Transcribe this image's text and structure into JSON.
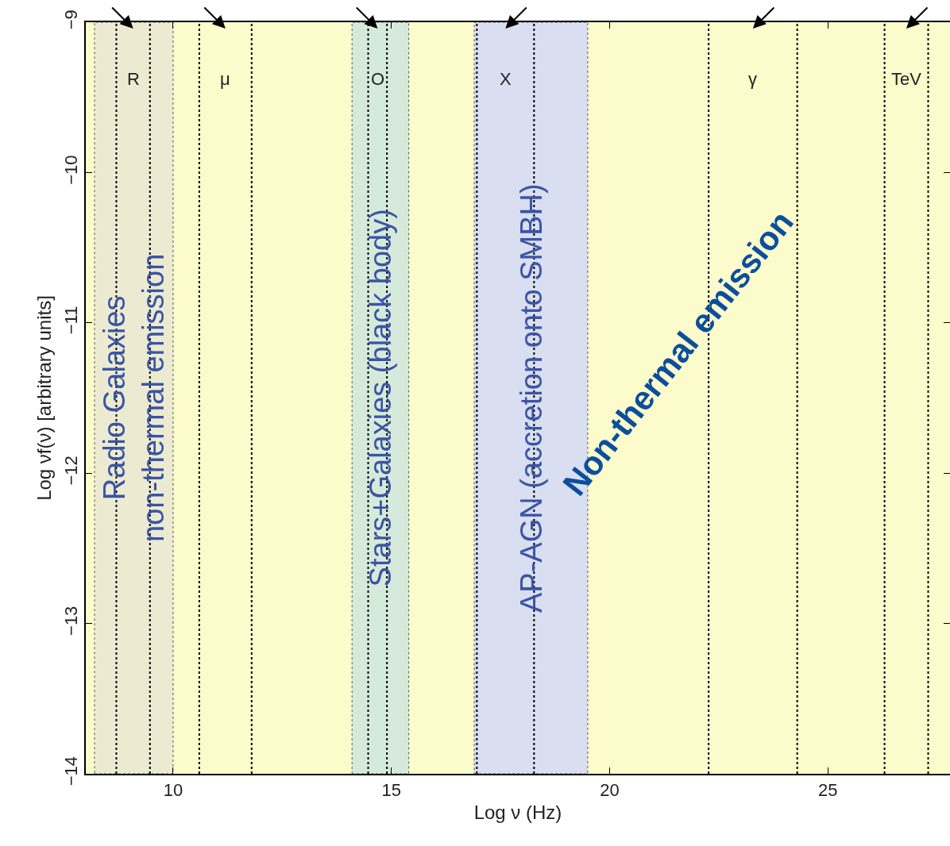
{
  "chart_data": {
    "type": "line",
    "xlabel": "Log ν (Hz)",
    "ylabel": "Log νf(ν) [arbitrary units]",
    "xlim": [
      8,
      27.8
    ],
    "ylim": [
      -14,
      -9
    ],
    "xticks": [
      10,
      15,
      20,
      25
    ],
    "yticks": [
      -14,
      -13,
      -12,
      -11,
      -10,
      -9
    ],
    "grid": false,
    "bands": [
      {
        "axis": "x",
        "from": 8.2,
        "to": 10.0,
        "label": "Radio Galaxies\nnon-thermal emission",
        "color": "#ecebd2"
      },
      {
        "axis": "x",
        "from": 14.1,
        "to": 15.4,
        "label": "Stars+Galaxies (black body)",
        "color": "#d6eadb"
      },
      {
        "axis": "x",
        "from": 16.9,
        "to": 19.5,
        "label": "AP-AGN (accretion onto SMBH)",
        "color": "#d9def0"
      }
    ],
    "ref_lines": [
      {
        "axis": "x",
        "value": 8.7,
        "line_style": "dotted"
      },
      {
        "axis": "x",
        "value": 9.47,
        "line_style": "dotted"
      },
      {
        "axis": "x",
        "value": 10.6,
        "line_style": "dotted"
      },
      {
        "axis": "x",
        "value": 11.8,
        "line_style": "dotted"
      },
      {
        "axis": "x",
        "value": 14.47,
        "line_style": "dotted"
      },
      {
        "axis": "x",
        "value": 14.9,
        "line_style": "dotted"
      },
      {
        "axis": "x",
        "value": 16.96,
        "line_style": "dotted"
      },
      {
        "axis": "x",
        "value": 18.27,
        "line_style": "dotted"
      },
      {
        "axis": "x",
        "value": 22.27,
        "line_style": "dotted"
      },
      {
        "axis": "x",
        "value": 24.3,
        "line_style": "dotted"
      },
      {
        "axis": "x",
        "value": 26.3,
        "line_style": "dotted"
      },
      {
        "axis": "x",
        "value": 27.3,
        "line_style": "dotted"
      }
    ],
    "annotations": [
      "R",
      "μ",
      "O",
      "X",
      "γ",
      "TeV",
      "Non-thermal emission"
    ]
  }
}
